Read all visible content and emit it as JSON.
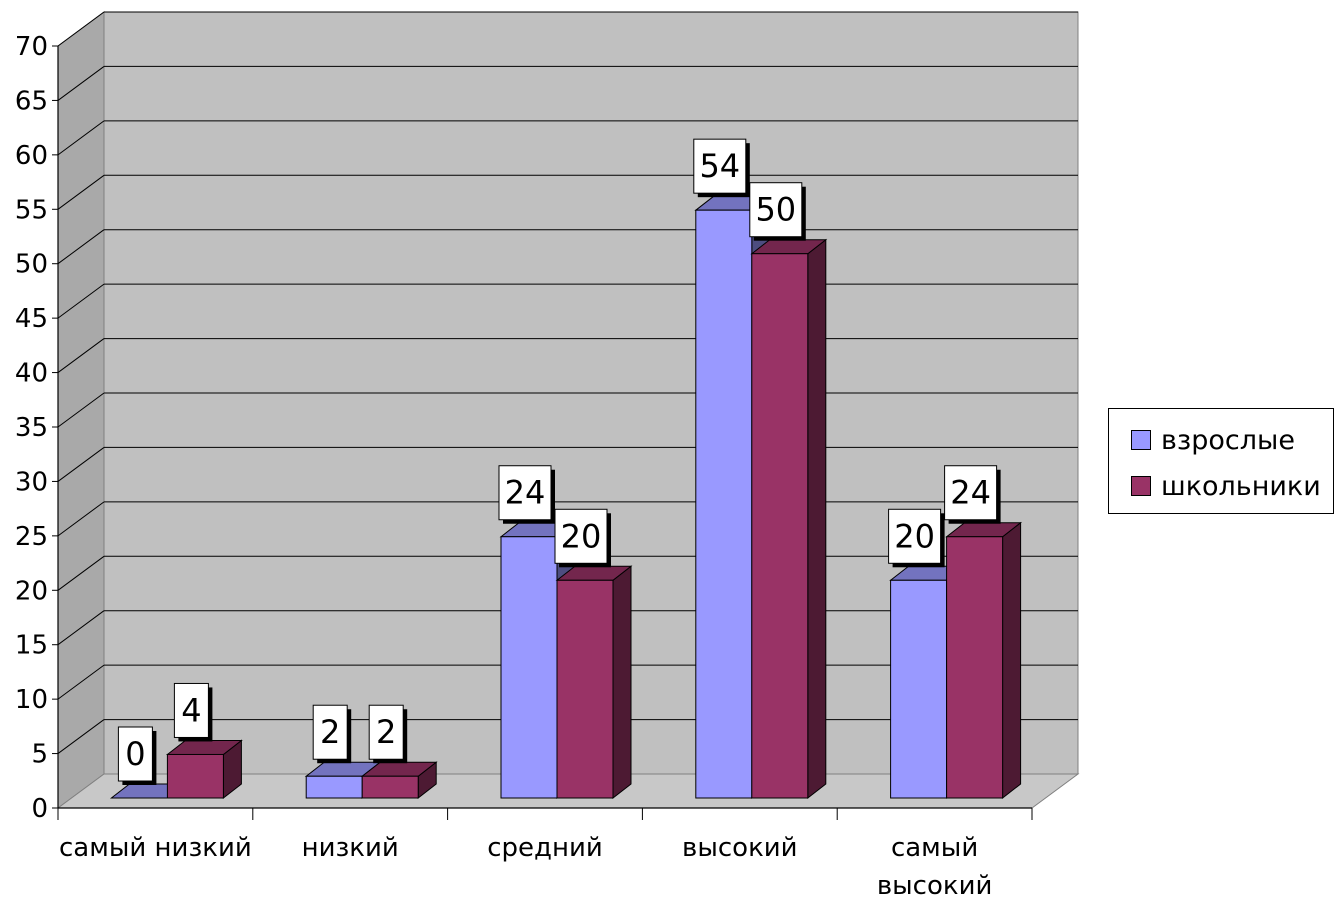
{
  "chart_data": {
    "type": "bar",
    "categories": [
      "самый низкий",
      "низкий",
      "средний",
      "высокий",
      "самый высокий"
    ],
    "category_lines": [
      [
        "самый низкий"
      ],
      [
        "низкий"
      ],
      [
        "средний"
      ],
      [
        "высокий"
      ],
      [
        "самый",
        "высокий"
      ]
    ],
    "series": [
      {
        "name": "взрослые",
        "values": [
          0,
          2,
          24,
          54,
          20
        ],
        "color": "#9999ff"
      },
      {
        "name": "школьники",
        "values": [
          4,
          2,
          20,
          50,
          24
        ],
        "color": "#993366"
      }
    ],
    "y_ticks": [
      "0",
      "5",
      "10",
      "15",
      "20",
      "25",
      "30",
      "35",
      "40",
      "45",
      "50",
      "55",
      "60",
      "65",
      "70"
    ],
    "ylim": [
      0,
      70
    ],
    "grid": true,
    "legend_position": "right",
    "style": "3d-clustered-column",
    "wall_color": "#c0c0c0"
  }
}
